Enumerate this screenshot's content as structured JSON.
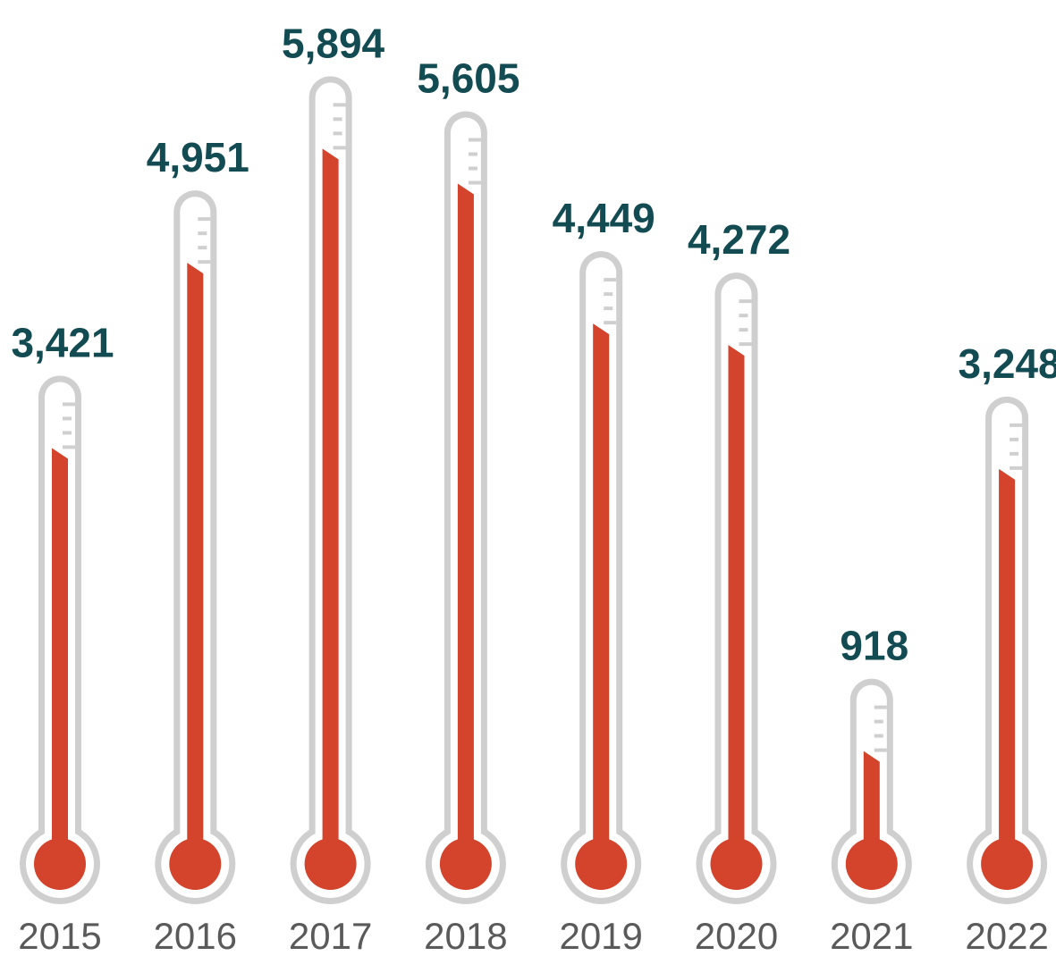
{
  "chart_data": {
    "type": "bar",
    "style": "thermometer",
    "categories": [
      "2015",
      "2016",
      "2017",
      "2018",
      "2019",
      "2020",
      "2021",
      "2022"
    ],
    "values": [
      3421,
      4951,
      5894,
      5605,
      4449,
      4272,
      918,
      3248
    ],
    "value_labels": [
      "3,421",
      "4,951",
      "5,894",
      "5,605",
      "4,449",
      "4,272",
      "918",
      "3,248"
    ],
    "title": "",
    "xlabel": "",
    "ylabel": "",
    "ylim": [
      0,
      5894
    ],
    "grid": false,
    "legend": "none",
    "colors": {
      "mercury": "#d4432b",
      "tube": "#cfcfcf",
      "tick": "#cfcfcf",
      "value_text": "#134b52",
      "year_text": "#5a5a5a"
    }
  }
}
